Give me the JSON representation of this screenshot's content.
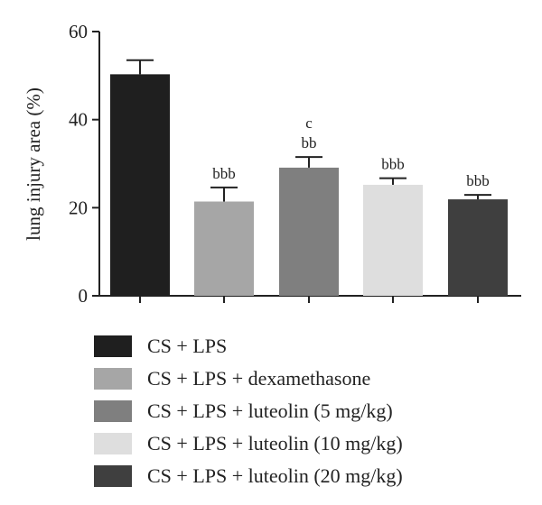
{
  "chart_data": {
    "type": "bar",
    "ylabel": "lung injury area (%)",
    "xlabel": "",
    "ylim": [
      0,
      60
    ],
    "yticks": [
      0,
      20,
      40,
      60
    ],
    "legend_position": "bottom",
    "series": [
      {
        "name": "CS + LPS",
        "value": 50.3,
        "error": 3.2,
        "color": "#1f1f1f",
        "annotation": []
      },
      {
        "name": "CS + LPS + dexamethasone",
        "value": 21.4,
        "error": 3.2,
        "color": "#a6a6a6",
        "annotation": [
          "bbb"
        ]
      },
      {
        "name": "CS + LPS + luteolin (5 mg/kg)",
        "value": 29.1,
        "error": 2.4,
        "color": "#7f7f7f",
        "annotation": [
          "c",
          "bb"
        ]
      },
      {
        "name": "CS + LPS + luteolin (10 mg/kg)",
        "value": 25.2,
        "error": 1.5,
        "color": "#dedede",
        "annotation": [
          "bbb"
        ]
      },
      {
        "name": "CS + LPS + luteolin (20 mg/kg)",
        "value": 21.9,
        "error": 1.0,
        "color": "#3f3f3f",
        "annotation": [
          "bbb"
        ]
      }
    ]
  }
}
